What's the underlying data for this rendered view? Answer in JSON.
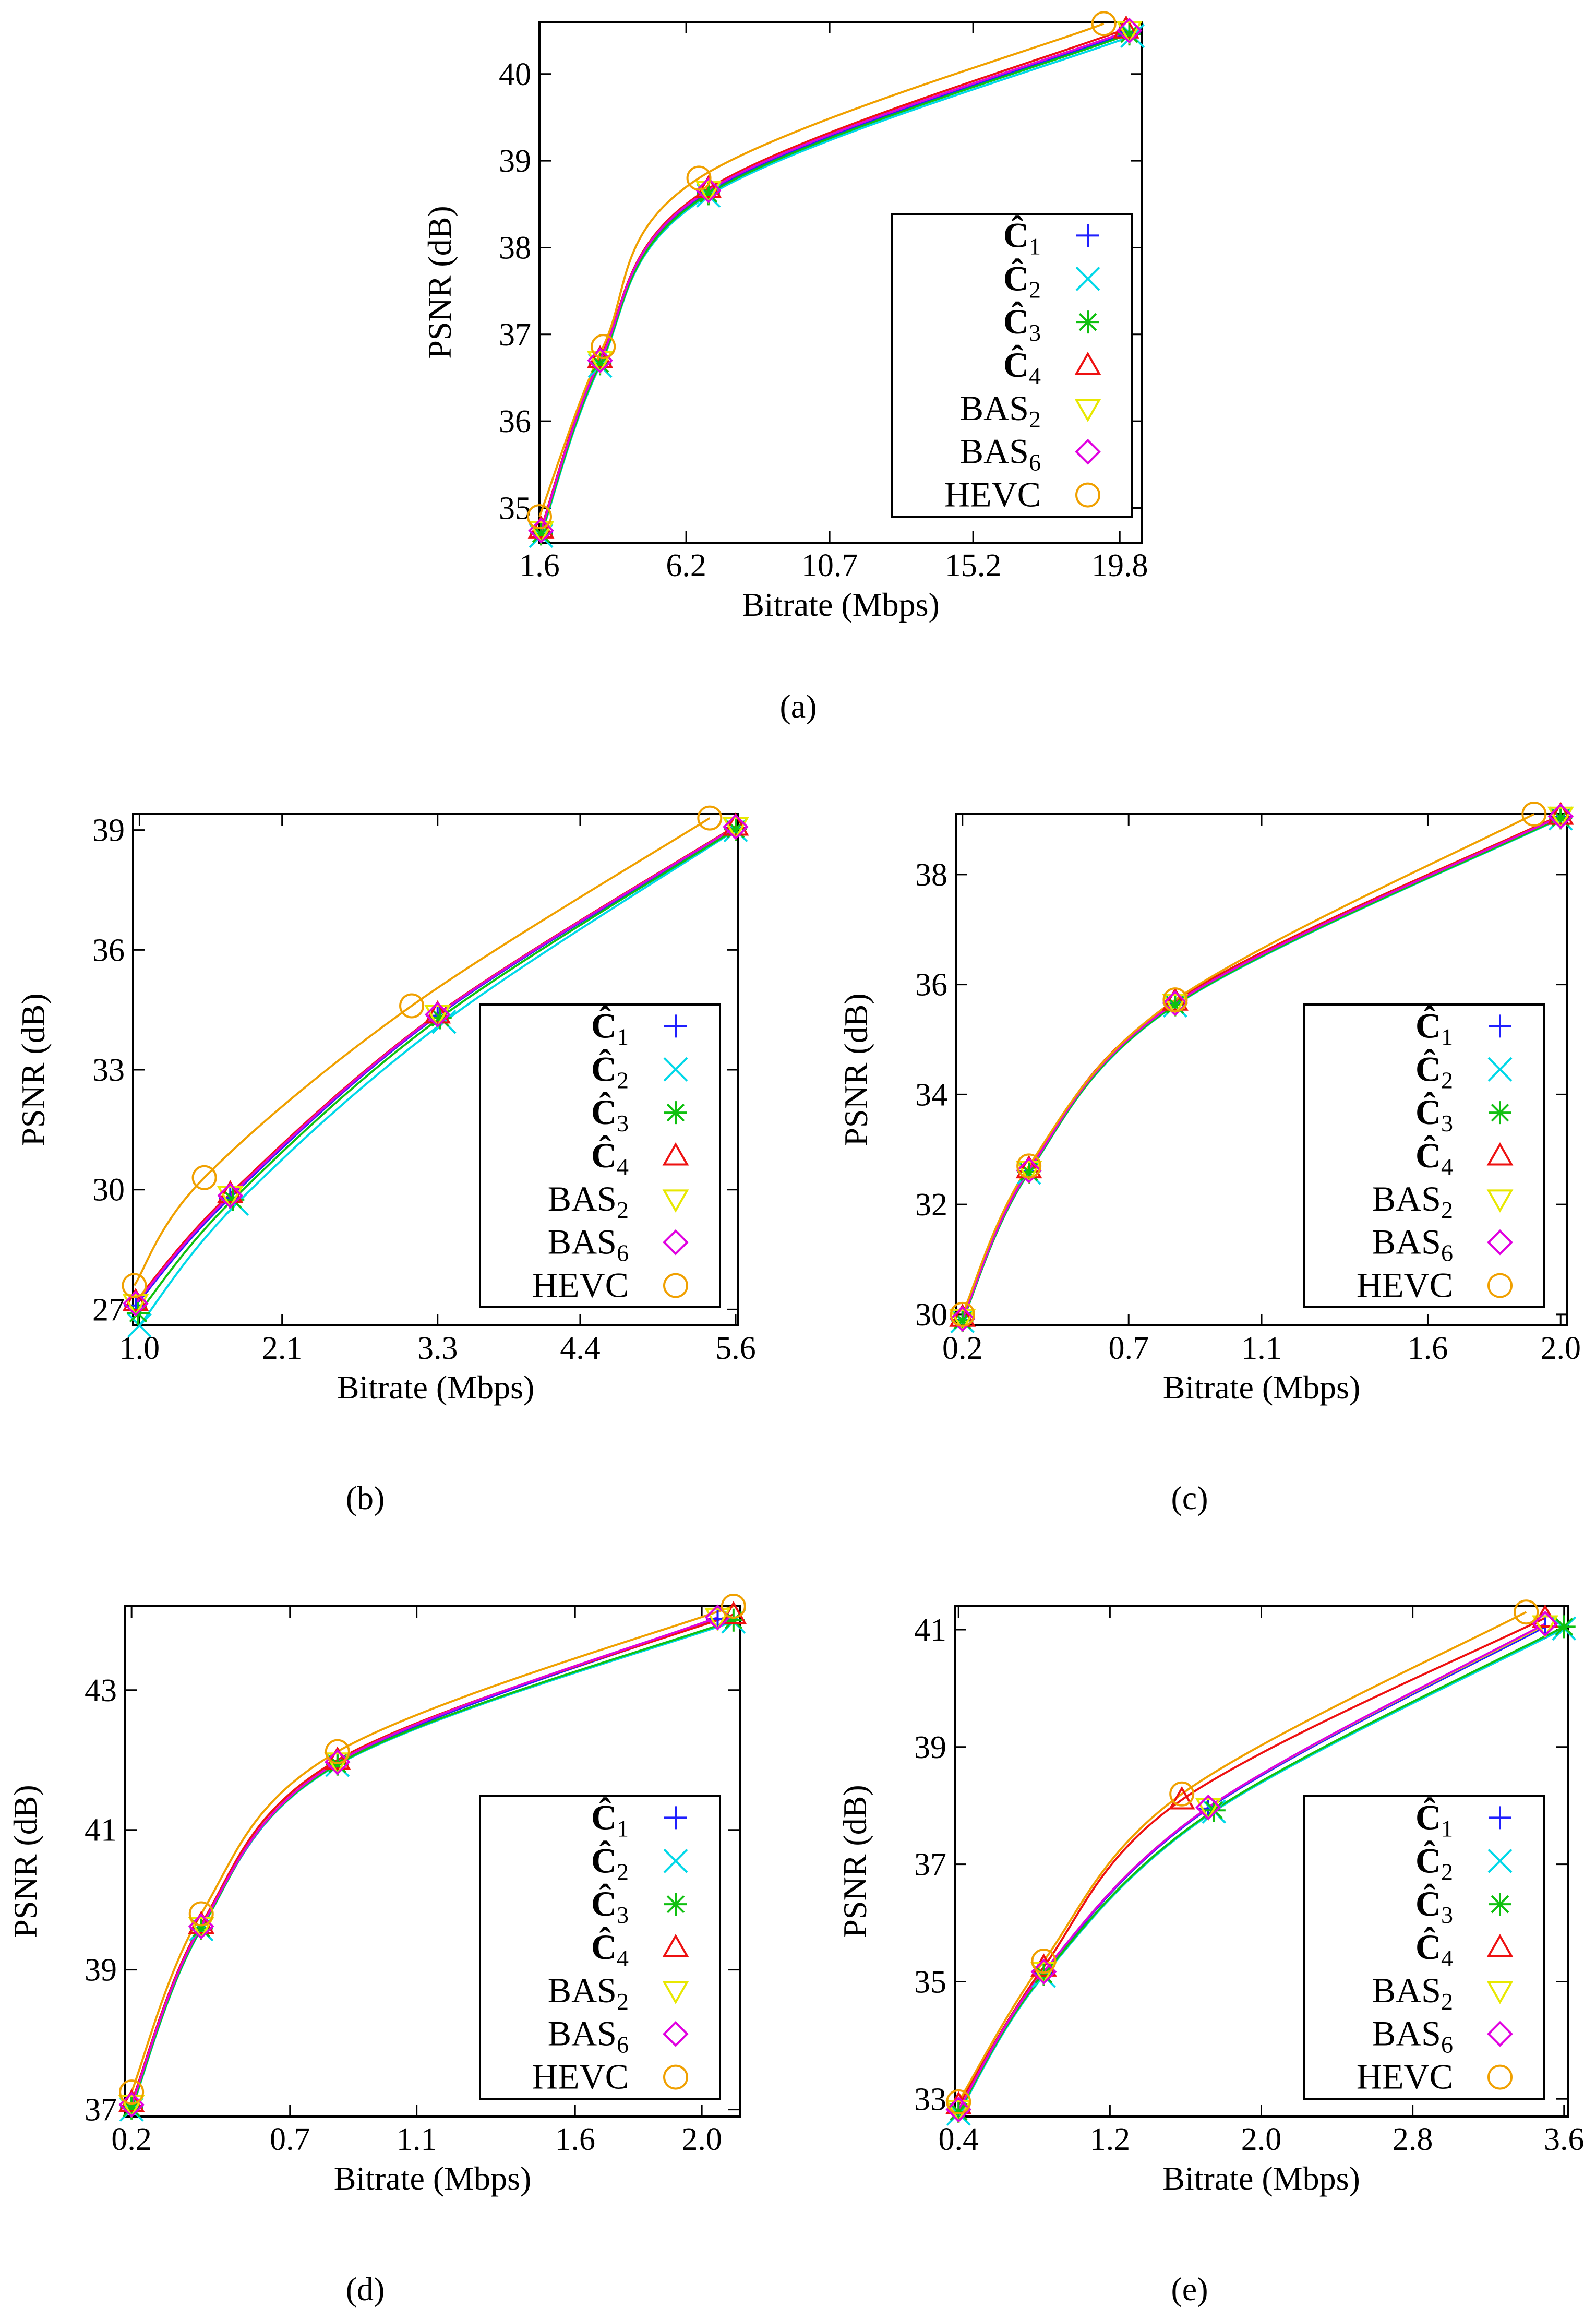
{
  "colors": {
    "C1": "#2020ff",
    "C2": "#00d8e8",
    "C3": "#10c010",
    "C4": "#ee1111",
    "BAS2": "#e8e800",
    "BAS6": "#e000e0",
    "HEVC": "#f0a000"
  },
  "legend": [
    {
      "key": "C1",
      "label": "Ĉ",
      "sub": "1",
      "marker": "plus"
    },
    {
      "key": "C2",
      "label": "Ĉ",
      "sub": "2",
      "marker": "x"
    },
    {
      "key": "C3",
      "label": "Ĉ",
      "sub": "3",
      "marker": "star"
    },
    {
      "key": "C4",
      "label": "Ĉ",
      "sub": "4",
      "marker": "triangle"
    },
    {
      "key": "BAS2",
      "label": "BAS",
      "sub": "2",
      "marker": "triangle-down"
    },
    {
      "key": "BAS6",
      "label": "BAS",
      "sub": "6",
      "marker": "diamond"
    },
    {
      "key": "HEVC",
      "label": "HEVC",
      "sub": "",
      "marker": "circle"
    }
  ],
  "chart_data": [
    {
      "type": "line",
      "caption": "(a)",
      "xlabel": "Bitrate (Mbps)",
      "ylabel": "PSNR (dB)",
      "xlim": [
        1.6,
        20.5
      ],
      "ylim": [
        34.6,
        40.6
      ],
      "xticks": [
        "1.6",
        "6.2",
        "10.7",
        "15.2",
        "19.8"
      ],
      "yticks": [
        "35",
        "36",
        "37",
        "38",
        "39",
        "40"
      ],
      "legend_position": "lower-right",
      "series": [
        {
          "key": "C1",
          "x": [
            1.65,
            3.5,
            6.9,
            20.1
          ],
          "y": [
            34.72,
            36.68,
            38.64,
            40.48
          ]
        },
        {
          "key": "C2",
          "x": [
            1.65,
            3.5,
            6.9,
            20.2
          ],
          "y": [
            34.68,
            36.64,
            38.6,
            40.44
          ]
        },
        {
          "key": "C3",
          "x": [
            1.65,
            3.5,
            6.9,
            20.1
          ],
          "y": [
            34.7,
            36.66,
            38.62,
            40.46
          ]
        },
        {
          "key": "C4",
          "x": [
            1.65,
            3.5,
            6.9,
            20.0
          ],
          "y": [
            34.76,
            36.72,
            38.68,
            40.52
          ]
        },
        {
          "key": "BAS2",
          "x": [
            1.65,
            3.5,
            6.9,
            20.1
          ],
          "y": [
            34.74,
            36.7,
            38.66,
            40.5
          ]
        },
        {
          "key": "BAS6",
          "x": [
            1.65,
            3.5,
            6.9,
            20.1
          ],
          "y": [
            34.74,
            36.7,
            38.66,
            40.5
          ]
        },
        {
          "key": "HEVC",
          "x": [
            1.6,
            3.6,
            6.6,
            19.3
          ],
          "y": [
            34.9,
            36.86,
            38.8,
            40.58
          ]
        }
      ]
    },
    {
      "type": "line",
      "caption": "(b)",
      "xlabel": "Bitrate (Mbps)",
      "ylabel": "PSNR (dB)",
      "xlim": [
        0.95,
        5.62
      ],
      "ylim": [
        26.6,
        39.4
      ],
      "xticks": [
        "1.0",
        "2.1",
        "3.3",
        "4.4",
        "5.6"
      ],
      "yticks": [
        "27",
        "30",
        "33",
        "36",
        "39"
      ],
      "legend_position": "lower-right",
      "series": [
        {
          "key": "C1",
          "x": [
            0.97,
            1.7,
            3.3,
            5.6
          ],
          "y": [
            27.1,
            29.8,
            34.35,
            39.05
          ]
        },
        {
          "key": "C2",
          "x": [
            1.0,
            1.75,
            3.35,
            5.6
          ],
          "y": [
            26.6,
            29.65,
            34.2,
            39.0
          ]
        },
        {
          "key": "C3",
          "x": [
            0.99,
            1.72,
            3.32,
            5.6
          ],
          "y": [
            26.9,
            29.75,
            34.3,
            39.02
          ]
        },
        {
          "key": "C4",
          "x": [
            0.97,
            1.7,
            3.3,
            5.6
          ],
          "y": [
            27.2,
            29.9,
            34.4,
            39.1
          ]
        },
        {
          "key": "BAS2",
          "x": [
            0.97,
            1.7,
            3.3,
            5.6
          ],
          "y": [
            27.15,
            29.85,
            34.38,
            39.08
          ]
        },
        {
          "key": "BAS6",
          "x": [
            0.97,
            1.7,
            3.3,
            5.6
          ],
          "y": [
            27.15,
            29.85,
            34.38,
            39.08
          ]
        },
        {
          "key": "HEVC",
          "x": [
            0.96,
            1.5,
            3.1,
            5.4
          ],
          "y": [
            27.6,
            30.3,
            34.6,
            39.3
          ]
        }
      ]
    },
    {
      "type": "line",
      "caption": "(c)",
      "xlabel": "Bitrate (Mbps)",
      "ylabel": "PSNR (dB)",
      "xlim": [
        0.18,
        2.02
      ],
      "ylim": [
        29.8,
        39.1
      ],
      "xticks": [
        "0.2",
        "0.7",
        "1.1",
        "1.6",
        "2.0"
      ],
      "yticks": [
        "30",
        "32",
        "34",
        "36",
        "38"
      ],
      "legend_position": "lower-right",
      "series": [
        {
          "key": "C1",
          "x": [
            0.2,
            0.4,
            0.84,
            2.0
          ],
          "y": [
            29.9,
            32.6,
            35.65,
            39.05
          ]
        },
        {
          "key": "C2",
          "x": [
            0.2,
            0.4,
            0.84,
            2.0
          ],
          "y": [
            29.88,
            32.58,
            35.62,
            39.02
          ]
        },
        {
          "key": "C3",
          "x": [
            0.2,
            0.4,
            0.84,
            2.0
          ],
          "y": [
            29.89,
            32.59,
            35.63,
            39.03
          ]
        },
        {
          "key": "C4",
          "x": [
            0.2,
            0.4,
            0.84,
            2.0
          ],
          "y": [
            29.95,
            32.65,
            35.7,
            39.08
          ]
        },
        {
          "key": "BAS2",
          "x": [
            0.2,
            0.4,
            0.84,
            2.0
          ],
          "y": [
            29.92,
            32.62,
            35.66,
            39.06
          ]
        },
        {
          "key": "BAS6",
          "x": [
            0.2,
            0.4,
            0.84,
            2.0
          ],
          "y": [
            29.92,
            32.62,
            35.66,
            39.06
          ]
        },
        {
          "key": "HEVC",
          "x": [
            0.2,
            0.4,
            0.84,
            1.92
          ],
          "y": [
            30.0,
            32.7,
            35.72,
            39.1
          ]
        }
      ]
    },
    {
      "type": "line",
      "caption": "(d)",
      "xlabel": "Bitrate (Mbps)",
      "ylabel": "PSNR (dB)",
      "xlim": [
        0.18,
        2.12
      ],
      "ylim": [
        36.9,
        44.2
      ],
      "xticks": [
        "0.2",
        "0.7",
        "1.1",
        "1.6",
        "2.0"
      ],
      "yticks": [
        "37",
        "39",
        "41",
        "43"
      ],
      "legend_position": "lower-right",
      "series": [
        {
          "key": "C1",
          "x": [
            0.2,
            0.42,
            0.85,
            2.05
          ],
          "y": [
            37.05,
            39.6,
            41.95,
            44.02
          ]
        },
        {
          "key": "C2",
          "x": [
            0.2,
            0.42,
            0.85,
            2.1
          ],
          "y": [
            37.0,
            39.58,
            41.93,
            43.98
          ]
        },
        {
          "key": "C3",
          "x": [
            0.2,
            0.42,
            0.85,
            2.1
          ],
          "y": [
            37.02,
            39.59,
            41.94,
            44.0
          ]
        },
        {
          "key": "C4",
          "x": [
            0.2,
            0.42,
            0.85,
            2.1
          ],
          "y": [
            37.1,
            39.65,
            42.0,
            44.08
          ]
        },
        {
          "key": "BAS2",
          "x": [
            0.2,
            0.42,
            0.85,
            2.05
          ],
          "y": [
            37.07,
            39.62,
            41.97,
            44.04
          ]
        },
        {
          "key": "BAS6",
          "x": [
            0.2,
            0.42,
            0.85,
            2.05
          ],
          "y": [
            37.07,
            39.62,
            41.97,
            44.04
          ]
        },
        {
          "key": "HEVC",
          "x": [
            0.2,
            0.42,
            0.85,
            2.1
          ],
          "y": [
            37.25,
            39.8,
            42.12,
            44.2
          ]
        }
      ]
    },
    {
      "type": "line",
      "caption": "(e)",
      "xlabel": "Bitrate (Mbps)",
      "ylabel": "PSNR (dB)",
      "xlim": [
        0.38,
        3.62
      ],
      "ylim": [
        32.7,
        41.4
      ],
      "xticks": [
        "0.4",
        "1.2",
        "2.0",
        "2.8",
        "3.6"
      ],
      "yticks": [
        "33",
        "35",
        "37",
        "39",
        "41"
      ],
      "legend_position": "lower-right",
      "series": [
        {
          "key": "C1",
          "x": [
            0.4,
            0.85,
            1.72,
            3.5
          ],
          "y": [
            32.8,
            35.15,
            37.95,
            41.05
          ]
        },
        {
          "key": "C2",
          "x": [
            0.4,
            0.85,
            1.75,
            3.6
          ],
          "y": [
            32.75,
            35.1,
            37.9,
            41.02
          ]
        },
        {
          "key": "C3",
          "x": [
            0.4,
            0.85,
            1.75,
            3.6
          ],
          "y": [
            32.78,
            35.12,
            37.92,
            41.05
          ]
        },
        {
          "key": "C4",
          "x": [
            0.4,
            0.85,
            1.58,
            3.5
          ],
          "y": [
            32.9,
            35.25,
            38.1,
            41.2
          ]
        },
        {
          "key": "BAS2",
          "x": [
            0.4,
            0.85,
            1.72,
            3.5
          ],
          "y": [
            32.82,
            35.17,
            37.97,
            41.08
          ]
        },
        {
          "key": "BAS6",
          "x": [
            0.4,
            0.85,
            1.72,
            3.5
          ],
          "y": [
            32.82,
            35.17,
            37.97,
            41.1
          ]
        },
        {
          "key": "HEVC",
          "x": [
            0.4,
            0.85,
            1.58,
            3.4
          ],
          "y": [
            32.95,
            35.35,
            38.2,
            41.3
          ]
        }
      ]
    }
  ]
}
